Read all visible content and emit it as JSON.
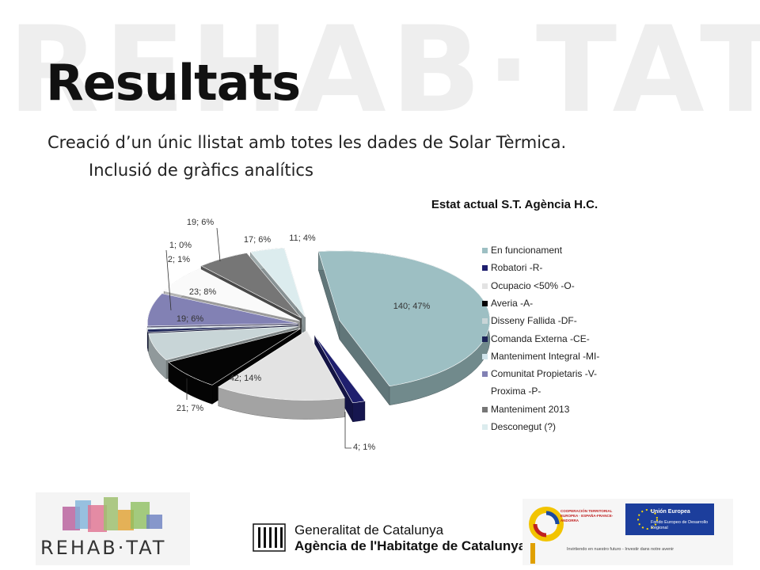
{
  "slide": {
    "watermark": "REHAB·TAT",
    "title": "Resultats",
    "subtitle_1": "Creació d’un únic llistat amb totes les dades de Solar Tèrmica.",
    "subtitle_2": "Inclusió de gràfics analítics"
  },
  "chart_data": {
    "type": "pie",
    "title": "Estat actual S.T. Agència H.C.",
    "legend_position": "right",
    "three_d": true,
    "exploded": true,
    "series": [
      {
        "name": "En funcionament",
        "value": 140,
        "label": "140; 47%",
        "color": "#9dbfc3"
      },
      {
        "name": "Robatori -R-",
        "value": 4,
        "label": "4; 1%",
        "color": "#1f1f6e"
      },
      {
        "name": "Ocupacio <50% -O-",
        "value": 42,
        "label": "42; 14%",
        "color": "#e3e3e3"
      },
      {
        "name": "Averia -A-",
        "value": 21,
        "label": "21; 7%",
        "color": "#050505"
      },
      {
        "name": "Disseny Fallida -DF-",
        "value": 19,
        "label": "19; 6%",
        "color": "#c8d5d7"
      },
      {
        "name": "Comanda Externa -CE-",
        "value": 2,
        "label": "2; 1%",
        "color": "#1c2458"
      },
      {
        "name": "Manteniment Integral -MI-",
        "value": 1,
        "label": "1; 0%",
        "color": "#cfe3ea"
      },
      {
        "name": "Comunitat Propietaris -V-",
        "value": 23,
        "label": "23; 8%",
        "color": "#8281b4"
      },
      {
        "name": "Proxima -P-",
        "value": 19,
        "label": "19; 6%",
        "color": "#fafafa"
      },
      {
        "name": "Manteniment 2013",
        "value": 17,
        "label": "17; 6%",
        "color": "#767676"
      },
      {
        "name": "Desconegut (?)",
        "value": 11,
        "label": "11; 4%",
        "color": "#dcecee"
      }
    ]
  },
  "footer": {
    "rehabitat_logo": "REHAB·TAT",
    "gencat_line1": "Generalitat de Catalunya",
    "gencat_line2": "Agència de l'Habitatge de Catalunya",
    "poctefa": "COOPERACIÓN TERRITORIAL EUROPEA · ESPAÑA-FRANCE-ANDORRA",
    "eu_title": "Unión Europea",
    "eu_subtitle": "Fondo Europeo de Desarrollo Regional",
    "eu_tagline": "Invirtiendo en nuestro futuro - Investir dans notre avenir"
  }
}
